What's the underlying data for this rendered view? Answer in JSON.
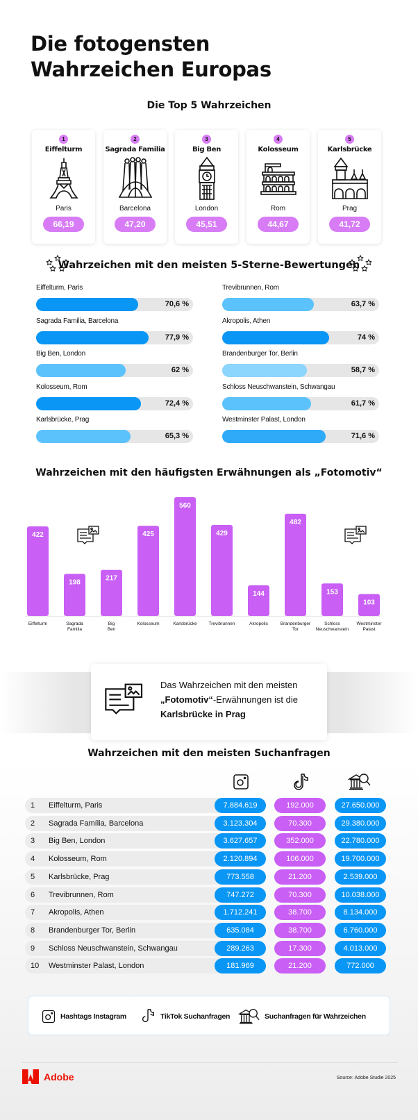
{
  "header": {
    "title_line1": "Die fotogensten",
    "title_line2": "Wahrzeichen Europas"
  },
  "top5": {
    "title": "Die Top 5 Wahrzeichen",
    "accent_color": "#d77cf5",
    "items": [
      {
        "rank": "1",
        "name": "Eiffelturm",
        "city": "Paris",
        "score": "66,19",
        "icon": "eiffel-tower-icon"
      },
      {
        "rank": "2",
        "name": "Sagrada Familia",
        "city": "Barcelona",
        "score": "47,20",
        "icon": "sagrada-familia-icon"
      },
      {
        "rank": "3",
        "name": "Big Ben",
        "city": "London",
        "score": "45,51",
        "icon": "big-ben-icon"
      },
      {
        "rank": "4",
        "name": "Kolosseum",
        "city": "Rom",
        "score": "44,67",
        "icon": "colosseum-icon"
      },
      {
        "rank": "5",
        "name": "Karlsbrücke",
        "city": "Prag",
        "score": "41,72",
        "icon": "charles-bridge-icon"
      }
    ]
  },
  "ratings": {
    "title": "Wahrzeichen mit den meisten 5-Sterne-Bewertungen",
    "icon": "five-stars-icon",
    "left": [
      {
        "label": "Eiffelturm, Paris",
        "value": "70,6 %",
        "percent": 70.6,
        "color": "#0996f5"
      },
      {
        "label": "Sagrada Familia, Barcelona",
        "value": "77,9 %",
        "percent": 77.9,
        "color": "#0996f5"
      },
      {
        "label": "Big Ben, London",
        "value": "62 %",
        "percent": 62,
        "color": "#5cc2fb"
      },
      {
        "label": "Kolosseum, Rom",
        "value": "72,4 %",
        "percent": 72.4,
        "color": "#0996f5"
      },
      {
        "label": "Karlsbrücke, Prag",
        "value": "65,3 %",
        "percent": 65.3,
        "color": "#5cc2fb"
      }
    ],
    "right": [
      {
        "label": "Trevibrunnen, Rom",
        "value": "63,7 %",
        "percent": 63.7,
        "color": "#5cc2fb"
      },
      {
        "label": "Akropolis, Athen",
        "value": "74 %",
        "percent": 74,
        "color": "#0996f5"
      },
      {
        "label": "Brandenburger Tor, Berlin",
        "value": "58,7 %",
        "percent": 58.7,
        "color": "#8cd5fc"
      },
      {
        "label": "Schloss Neuschwanstein, Schwangau",
        "value": "61,7 %",
        "percent": 61.7,
        "color": "#5cc2fb"
      },
      {
        "label": "Westminster Palast, London",
        "value": "71,6 %",
        "percent": 71.6,
        "color": "#2eaaf8"
      }
    ]
  },
  "chart_data": {
    "type": "bar",
    "title": "Wahrzeichen mit den häufigsten Erwähnungen als „Fotomotiv“",
    "categories": [
      "Eiffelturm",
      "Sagrada Familia",
      "Big Ben",
      "Kolosseum",
      "Karlsbrücke",
      "Trevibrunnen",
      "Akropolis",
      "Brandenburger Tor",
      "Schloss Neuschwanstein",
      "Westminster Palast"
    ],
    "category_lines": [
      [
        "Eiffelturm"
      ],
      [
        "Sagrada",
        "Familia"
      ],
      [
        "Big",
        "Ben"
      ],
      [
        "Kolosseum"
      ],
      [
        "Karlsbrücke"
      ],
      [
        "Trevibrunnen"
      ],
      [
        "Akropolis"
      ],
      [
        "Brandenburger",
        "Tor"
      ],
      [
        "Schloss",
        "Neuschwanstein"
      ],
      [
        "Westminster",
        "Palast"
      ]
    ],
    "values": [
      422,
      198,
      217,
      425,
      560,
      429,
      144,
      482,
      153,
      103
    ],
    "xlabel": "",
    "ylabel": "",
    "ylim": [
      0,
      560
    ],
    "grid": false,
    "bar_color": "#c95ff5",
    "data_labels": true
  },
  "callout": {
    "line1": "Das Wahrzeichen mit den meisten",
    "bold1": "„Fotomotiv“",
    "line2_rest": "-Erwähnungen ist die",
    "bold2": "Karlsbrücke in Prag",
    "icon": "photo-message-icon"
  },
  "search": {
    "title": "Wahrzeichen mit den meisten Suchanfragen",
    "columns": [
      {
        "icon": "instagram-icon",
        "color": "#0996f5"
      },
      {
        "icon": "tiktok-icon",
        "color": "#c95ff5"
      },
      {
        "icon": "landmark-search-icon",
        "color": "#0996f5"
      }
    ],
    "rows": [
      {
        "rank": "1",
        "name": "Eiffelturm, Paris",
        "instagram": "7.884.619",
        "tiktok": "192.000",
        "search": "27.650.000"
      },
      {
        "rank": "2",
        "name": "Sagrada Família, Barcelona",
        "instagram": "3.123.304",
        "tiktok": "70.300",
        "search": "29.380.000"
      },
      {
        "rank": "3",
        "name": "Big Ben, London",
        "instagram": "3.627.657",
        "tiktok": "352.000",
        "search": "22.780.000"
      },
      {
        "rank": "4",
        "name": "Kolosseum, Rom",
        "instagram": "2.120.894",
        "tiktok": "106.000",
        "search": "19.700.000"
      },
      {
        "rank": "5",
        "name": "Karlsbrücke, Prag",
        "instagram": "773.558",
        "tiktok": "21.200",
        "search": "2.539.000"
      },
      {
        "rank": "6",
        "name": "Trevibrunnen, Rom",
        "instagram": "747.272",
        "tiktok": "70.300",
        "search": "10.038.000"
      },
      {
        "rank": "7",
        "name": "Akropolis, Athen",
        "instagram": "1.712.241",
        "tiktok": "38.700",
        "search": "8.134.000"
      },
      {
        "rank": "8",
        "name": "Brandenburger Tor, Berlin",
        "instagram": "635.084",
        "tiktok": "38.700",
        "search": "6.760.000"
      },
      {
        "rank": "9",
        "name": "Schloss Neuschwanstein, Schwangau",
        "instagram": "289.263",
        "tiktok": "17.300",
        "search": "4.013.000"
      },
      {
        "rank": "10",
        "name": "Westminster Palast, London",
        "instagram": "181.969",
        "tiktok": "21.200",
        "search": "772.000"
      }
    ]
  },
  "legend": {
    "items": [
      {
        "icon": "instagram-icon",
        "label": "Hashtags Instagram"
      },
      {
        "icon": "tiktok-icon",
        "label": "TikTok Suchanfragen"
      },
      {
        "icon": "landmark-search-icon",
        "label": "Suchanfragen für Wahrzeichen"
      }
    ]
  },
  "footer": {
    "brand": "Adobe",
    "brand_color": "#eb1000",
    "source": "Source: Adobe Studie 2025"
  }
}
